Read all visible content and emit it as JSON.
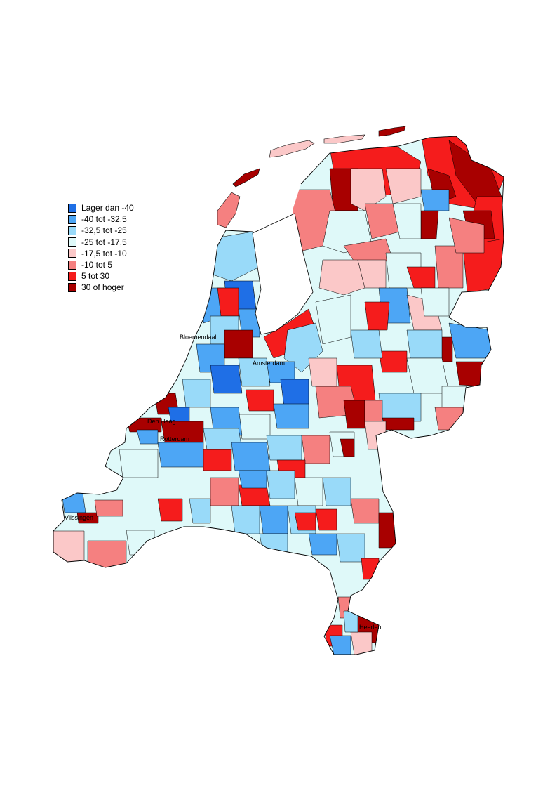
{
  "legend": {
    "items": [
      {
        "label": "Lager dan -40",
        "color": "#1f6fe6"
      },
      {
        "label": "-40 tot -32,5",
        "color": "#4da6f5"
      },
      {
        "label": "-32,5 tot -25",
        "color": "#99daf9"
      },
      {
        "label": "-25 tot -17,5",
        "color": "#dff9f9"
      },
      {
        "label": "-17,5 tot -10",
        "color": "#fbc8c8"
      },
      {
        "label": "-10 tot 5",
        "color": "#f58080"
      },
      {
        "label": "5 tot 30",
        "color": "#f51c1c"
      },
      {
        "label": "30 of hoger",
        "color": "#a80000"
      }
    ]
  },
  "map_labels": {
    "bloemendaal": "Bloemendaal",
    "amsterdam": "Amsterdam",
    "den_haag": "Den Haag",
    "rotterdam": "Rotterdam",
    "vlissingen": "Vlissingen",
    "heerlen": "Heerlen"
  },
  "colors": {
    "border": "#000000",
    "background": "#ffffff"
  }
}
